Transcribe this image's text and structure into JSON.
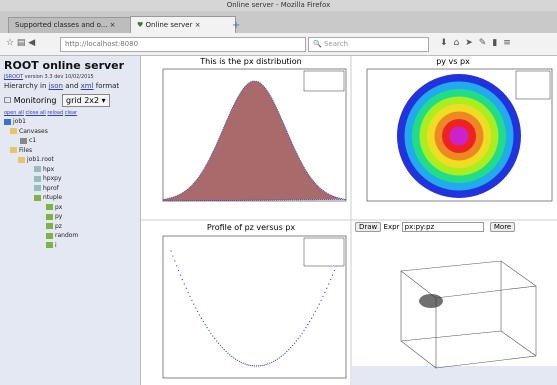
{
  "window": {
    "title": "Online server - Mozilla Firefox"
  },
  "tabs": [
    "Supported classes and o...",
    "Online server"
  ],
  "toolbar": {
    "url": "http://localhost:8080",
    "search": "Search"
  },
  "sidebar": {
    "title": "ROOT online server",
    "version_link": "JSROOT",
    "version_text": "version 3.3 dev 10/02/2015",
    "hierarchy": [
      "Hierarchy in",
      "json",
      "and",
      "xml",
      "format"
    ],
    "monitoring": "Monitoring",
    "layout": "grid 2x2",
    "links": [
      "open all",
      "close all",
      "reload",
      "clear"
    ],
    "tree": [
      "job1",
      "Canvases",
      "c1",
      "Files",
      "job1.root",
      "hpx",
      "hpxpy",
      "hprof",
      "ntuple",
      "px",
      "py",
      "pz",
      "random",
      "i"
    ]
  },
  "panels": {
    "hpx_title": "This is the px distribution",
    "hpxpy_title": "py vs px",
    "hprof_title": "Profile of pz versus px"
  },
  "draw": {
    "button": "Draw",
    "expr_label": "Expr",
    "expr": "px:py:pz",
    "more": "More"
  }
}
